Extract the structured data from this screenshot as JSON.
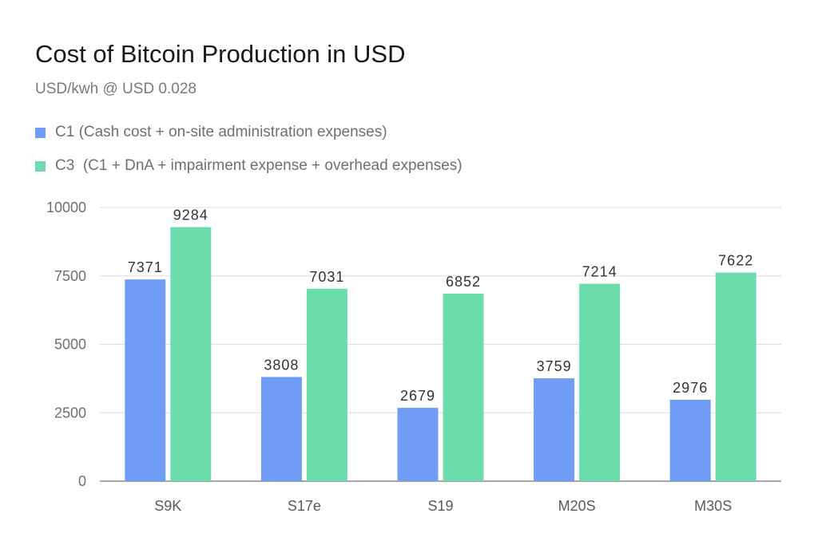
{
  "chart_data": {
    "type": "bar",
    "title": "Cost of Bitcoin Production in USD",
    "subtitle": "USD/kwh @ USD 0.028",
    "categories": [
      "S9K",
      "S17e",
      "S19",
      "M20S",
      "M30S"
    ],
    "series": [
      {
        "name": "C1 (Cash cost + on-site administration expenses)",
        "values": [
          7371,
          3808,
          2679,
          3759,
          2976
        ],
        "color": "#6f9cf5"
      },
      {
        "name": "C3  (C1 + DnA + impairment expense + overhead expenses)",
        "values": [
          9284,
          7031,
          6852,
          7214,
          7622
        ],
        "color": "#6cdcac"
      }
    ],
    "ylim": [
      0,
      10000
    ],
    "yticks": [
      0,
      2500,
      5000,
      7500,
      10000
    ],
    "xlabel": "",
    "ylabel": "",
    "grid": true,
    "legend_position": "top-left"
  }
}
